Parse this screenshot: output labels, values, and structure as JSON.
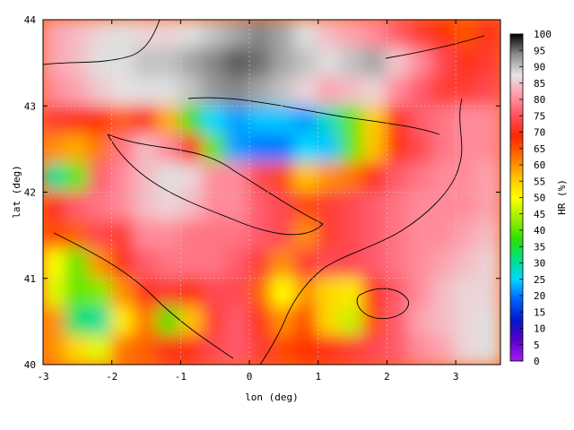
{
  "chart_data": {
    "type": "heatmap",
    "xlabel": "lon (deg)",
    "ylabel": "lat (deg)",
    "colorbar_label": "HR (%)",
    "xlim": [
      -3,
      3.65
    ],
    "ylim": [
      40,
      44
    ],
    "x_ticks": [
      -3,
      -2,
      -1,
      0,
      1,
      2,
      3
    ],
    "y_ticks": [
      40,
      41,
      42,
      43,
      44
    ],
    "colorbar_range": [
      0,
      100
    ],
    "colorbar_ticks": [
      0,
      5,
      10,
      15,
      20,
      25,
      30,
      35,
      40,
      45,
      50,
      55,
      60,
      65,
      70,
      75,
      80,
      85,
      90,
      95,
      100
    ],
    "grid": true,
    "colormap": [
      "#a020f0",
      "#5a00c8",
      "#0018c8",
      "#0060ff",
      "#00d8ff",
      "#00e080",
      "#30e000",
      "#a0f000",
      "#ffff00",
      "#ffc000",
      "#ff7000",
      "#ff2800",
      "#ff5060",
      "#ff9aa8",
      "#e6e6e6",
      "#8c8c8c",
      "#000000"
    ],
    "cells": [
      [
        82,
        84,
        86,
        88,
        86,
        86,
        88,
        90,
        92,
        94,
        92,
        88,
        84,
        82,
        80,
        76,
        72,
        68,
        65,
        70
      ],
      [
        82,
        84,
        88,
        88,
        90,
        90,
        92,
        94,
        96,
        95,
        92,
        90,
        88,
        90,
        92,
        85,
        80,
        74,
        70,
        72
      ],
      [
        80,
        82,
        85,
        87,
        88,
        88,
        90,
        93,
        94,
        92,
        90,
        86,
        82,
        84,
        86,
        80,
        76,
        72,
        72,
        74
      ],
      [
        72,
        70,
        68,
        64,
        70,
        58,
        38,
        25,
        22,
        24,
        24,
        22,
        28,
        40,
        55,
        70,
        76,
        78,
        80,
        80
      ],
      [
        60,
        58,
        62,
        78,
        84,
        80,
        70,
        40,
        22,
        20,
        20,
        25,
        24,
        40,
        56,
        68,
        74,
        78,
        80,
        80
      ],
      [
        30,
        40,
        76,
        80,
        84,
        88,
        86,
        80,
        80,
        74,
        66,
        56,
        60,
        62,
        70,
        76,
        78,
        80,
        80,
        82
      ],
      [
        70,
        76,
        78,
        80,
        84,
        86,
        84,
        80,
        80,
        76,
        74,
        66,
        72,
        74,
        76,
        78,
        80,
        80,
        80,
        82
      ],
      [
        66,
        64,
        74,
        72,
        80,
        80,
        78,
        78,
        78,
        76,
        74,
        60,
        72,
        74,
        76,
        78,
        80,
        80,
        82,
        84
      ],
      [
        50,
        40,
        60,
        70,
        76,
        78,
        78,
        78,
        76,
        72,
        60,
        72,
        74,
        74,
        76,
        78,
        80,
        82,
        84,
        86
      ],
      [
        48,
        40,
        42,
        60,
        70,
        72,
        68,
        74,
        74,
        64,
        50,
        60,
        54,
        52,
        70,
        76,
        80,
        84,
        86,
        86
      ],
      [
        60,
        32,
        30,
        52,
        62,
        38,
        56,
        72,
        76,
        70,
        60,
        66,
        54,
        46,
        66,
        76,
        82,
        84,
        86,
        88
      ],
      [
        60,
        54,
        48,
        62,
        64,
        70,
        70,
        74,
        76,
        72,
        66,
        68,
        70,
        72,
        74,
        76,
        80,
        82,
        86,
        88
      ]
    ]
  }
}
